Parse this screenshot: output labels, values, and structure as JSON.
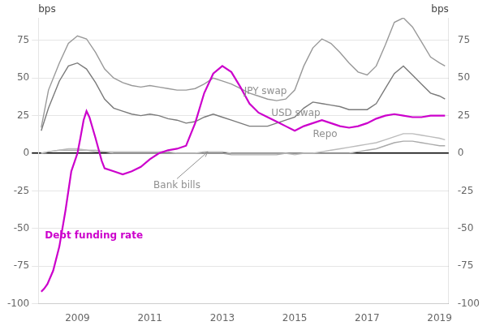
{
  "chart_data": {
    "type": "line",
    "xlim": [
      2007.92,
      2019.25
    ],
    "xticks": [
      2009,
      2011,
      2013,
      2015,
      2017,
      2019
    ],
    "ylim": [
      -100,
      90
    ],
    "yticks": [
      -100,
      -75,
      -50,
      -25,
      0,
      25,
      50,
      75
    ],
    "y2lim": [
      -100,
      90
    ],
    "y2ticks": [
      -100,
      -75,
      -50,
      -25,
      0,
      25,
      50,
      75
    ],
    "ylabel": "bps",
    "y2label": "bps",
    "grid": "y",
    "series": [
      {
        "name": "JPY swap",
        "color": "#999999",
        "x": [
          2008.0,
          2008.2,
          2008.5,
          2008.75,
          2009.0,
          2009.25,
          2009.5,
          2009.75,
          2010.0,
          2010.25,
          2010.5,
          2010.75,
          2011.0,
          2011.25,
          2011.5,
          2011.75,
          2012.0,
          2012.25,
          2012.5,
          2012.75,
          2013.0,
          2013.25,
          2013.5,
          2013.75,
          2014.0,
          2014.25,
          2014.5,
          2014.75,
          2015.0,
          2015.25,
          2015.5,
          2015.75,
          2016.0,
          2016.25,
          2016.5,
          2016.75,
          2017.0,
          2017.25,
          2017.5,
          2017.75,
          2018.0,
          2018.25,
          2018.5,
          2018.75,
          2019.0,
          2019.15
        ],
        "values": [
          17,
          42,
          60,
          73,
          78,
          76,
          67,
          56,
          50,
          47,
          45,
          44,
          45,
          44,
          43,
          42,
          42,
          43,
          46,
          50,
          48,
          46,
          43,
          40,
          38,
          36,
          35,
          36,
          42,
          58,
          70,
          76,
          73,
          67,
          60,
          54,
          52,
          58,
          72,
          87,
          90,
          84,
          74,
          64,
          60,
          58
        ]
      },
      {
        "name": "USD swap",
        "color": "#7a7a7a",
        "x": [
          2008.0,
          2008.2,
          2008.5,
          2008.75,
          2009.0,
          2009.25,
          2009.5,
          2009.75,
          2010.0,
          2010.25,
          2010.5,
          2010.75,
          2011.0,
          2011.25,
          2011.5,
          2011.75,
          2012.0,
          2012.25,
          2012.5,
          2012.75,
          2013.0,
          2013.25,
          2013.5,
          2013.75,
          2014.0,
          2014.25,
          2014.5,
          2014.75,
          2015.0,
          2015.25,
          2015.5,
          2015.75,
          2016.0,
          2016.25,
          2016.5,
          2016.75,
          2017.0,
          2017.25,
          2017.5,
          2017.75,
          2018.0,
          2018.25,
          2018.5,
          2018.75,
          2019.0,
          2019.15
        ],
        "values": [
          15,
          30,
          48,
          58,
          60,
          56,
          47,
          36,
          30,
          28,
          26,
          25,
          26,
          25,
          23,
          22,
          20,
          21,
          24,
          26,
          24,
          22,
          20,
          18,
          18,
          18,
          20,
          22,
          24,
          30,
          34,
          33,
          32,
          31,
          29,
          29,
          29,
          33,
          43,
          53,
          58,
          52,
          46,
          40,
          38,
          36
        ]
      },
      {
        "name": "Bank bills",
        "color": "#aaaaaa",
        "x": [
          2008.0,
          2008.2,
          2008.5,
          2008.75,
          2009.0,
          2009.25,
          2009.5,
          2009.75,
          2010.0,
          2010.25,
          2010.5,
          2010.75,
          2011.0,
          2011.25,
          2011.5,
          2011.75,
          2012.0,
          2012.25,
          2012.5,
          2012.75,
          2013.0,
          2013.25,
          2013.5,
          2013.75,
          2014.0,
          2014.25,
          2014.5,
          2014.75,
          2015.0,
          2015.25,
          2015.5,
          2015.75,
          2016.0,
          2016.25,
          2016.5,
          2016.75,
          2017.0,
          2017.25,
          2017.5,
          2017.75,
          2018.0,
          2018.25,
          2018.5,
          2018.75,
          2019.0,
          2019.15
        ],
        "values": [
          0,
          1,
          2,
          2,
          2,
          2,
          1,
          1,
          0,
          0,
          0,
          0,
          0,
          0,
          0,
          0,
          0,
          0,
          0,
          0,
          0,
          -1,
          -1,
          -1,
          -1,
          -1,
          -1,
          0,
          0,
          0,
          0,
          0,
          0,
          0,
          0,
          1,
          2,
          3,
          5,
          7,
          8,
          8,
          7,
          6,
          5,
          5
        ]
      },
      {
        "name": "Repo",
        "color": "#bbbbbb",
        "x": [
          2008.0,
          2008.2,
          2008.5,
          2008.75,
          2009.0,
          2009.25,
          2009.5,
          2009.75,
          2010.0,
          2010.25,
          2010.5,
          2010.75,
          2011.0,
          2011.25,
          2011.5,
          2011.75,
          2012.0,
          2012.25,
          2012.5,
          2012.75,
          2013.0,
          2013.25,
          2013.5,
          2013.75,
          2014.0,
          2014.25,
          2014.5,
          2014.75,
          2015.0,
          2015.25,
          2015.5,
          2015.75,
          2016.0,
          2016.25,
          2016.5,
          2016.75,
          2017.0,
          2017.25,
          2017.5,
          2017.75,
          2018.0,
          2018.25,
          2018.5,
          2018.75,
          2019.0,
          2019.15
        ],
        "values": [
          0,
          1,
          2,
          3,
          3,
          2,
          2,
          1,
          1,
          1,
          1,
          1,
          1,
          1,
          1,
          0,
          0,
          0,
          1,
          1,
          1,
          0,
          0,
          0,
          0,
          0,
          0,
          0,
          -1,
          0,
          0,
          1,
          2,
          3,
          4,
          5,
          6,
          7,
          9,
          11,
          13,
          13,
          12,
          11,
          10,
          9
        ]
      },
      {
        "name": "Debt funding rate",
        "color": "#cc00cc",
        "x": [
          2008.0,
          2008.08,
          2008.17,
          2008.33,
          2008.5,
          2008.67,
          2008.83,
          2009.0,
          2009.08,
          2009.17,
          2009.25,
          2009.33,
          2009.5,
          2009.67,
          2009.75,
          2010.0,
          2010.25,
          2010.5,
          2010.75,
          2011.0,
          2011.25,
          2011.5,
          2011.75,
          2012.0,
          2012.25,
          2012.5,
          2012.75,
          2013.0,
          2013.25,
          2013.5,
          2013.75,
          2014.0,
          2014.25,
          2014.5,
          2014.75,
          2015.0,
          2015.25,
          2015.5,
          2015.75,
          2016.0,
          2016.25,
          2016.5,
          2016.75,
          2017.0,
          2017.25,
          2017.5,
          2017.75,
          2018.0,
          2018.25,
          2018.5,
          2018.75,
          2019.0,
          2019.15
        ],
        "values": [
          -92,
          -90,
          -87,
          -78,
          -62,
          -38,
          -12,
          0,
          10,
          22,
          28,
          24,
          10,
          -5,
          -10,
          -12,
          -14,
          -12,
          -9,
          -4,
          0,
          2,
          3,
          5,
          20,
          40,
          53,
          58,
          54,
          44,
          33,
          27,
          24,
          21,
          18,
          15,
          18,
          20,
          22,
          20,
          18,
          17,
          18,
          20,
          23,
          25,
          26,
          25,
          24,
          24,
          25,
          25,
          25
        ]
      }
    ],
    "annotations": [
      {
        "text": "JPY swap",
        "x": 2013.6,
        "y": 38,
        "color": "#909090"
      },
      {
        "text": "USD swap",
        "x": 2014.35,
        "y": 23,
        "color": "#909090"
      },
      {
        "text": "Repo",
        "x": 2015.5,
        "y": 9,
        "color": "#909090"
      },
      {
        "text": "Bank bills",
        "x": 2011.1,
        "y": -18,
        "color": "#909090",
        "arrow_x": 2012.6,
        "arrow_y": 1
      },
      {
        "text": "Debt funding rate",
        "x": 2008.1,
        "y": -58,
        "color": "#cc00cc"
      }
    ]
  }
}
